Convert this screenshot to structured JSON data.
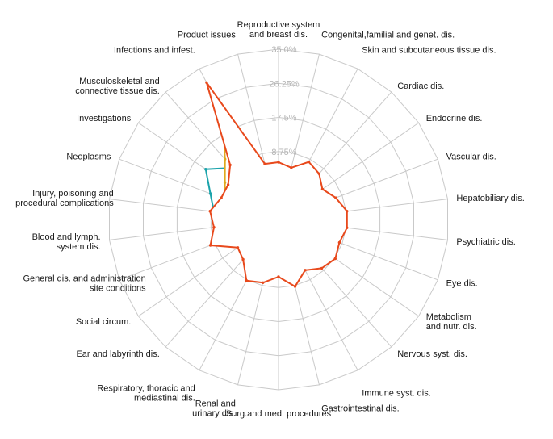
{
  "chart_data": {
    "type": "radar",
    "title": "",
    "axis_max": 35,
    "rings": [
      8.75,
      17.5,
      26.25,
      35.0
    ],
    "ring_labels": [
      "8.75%",
      "17.5%",
      "26.25%",
      "35.0%"
    ],
    "grid_color": "#c9c9c9",
    "label_color": "#1a1a1a",
    "ring_label_color": "#b5b5b5",
    "categories": [
      "Reproductive system\nand breast dis.",
      "Congenital,familial and genet. dis.",
      "Skin and subcutaneous tissue dis.",
      "Cardiac dis.",
      "Endocrine dis.",
      "Vascular dis.",
      "Hepatobiliary dis.",
      "Psychiatric dis.",
      "Eye dis.",
      "Metabolism\nand nutr. dis.",
      "Nervous syst. dis.",
      "Immune syst. dis.",
      "Gastrointestinal dis.",
      "Surg.and med. procedures",
      "Renal and\nurinary dis.",
      "Respiratory, thoracic and\nmediastinal dis.",
      "Ear and labyrinth dis.",
      "Social circum.",
      "General dis. and administration\nsite conditions",
      "Blood and lymph.\nsystem dis.",
      "Injury, poisoning and\nprocedural complications",
      "Neoplasms",
      "Investigations",
      "Musculoskeletal and\nconnective tissue dis.",
      "Infections and infest.",
      "Product issues"
    ],
    "series": [
      {
        "name": "teal",
        "color": "#1ba3ab",
        "values": [
          3,
          3,
          5,
          4,
          3,
          5,
          6,
          6,
          5,
          6,
          5,
          4,
          6,
          4,
          5,
          6,
          4,
          3,
          7,
          6,
          8,
          10,
          14,
          9,
          16,
          4
        ]
      },
      {
        "name": "yellow",
        "color": "#dfa91e",
        "values": [
          4,
          3,
          6,
          5,
          4,
          5,
          7,
          8,
          6,
          7,
          6,
          5,
          7,
          5,
          6,
          7,
          4,
          3,
          8,
          6,
          7,
          6,
          8,
          12,
          22,
          5
        ]
      },
      {
        "name": "red",
        "color": "#e8491c",
        "values": [
          6,
          5,
          8,
          7,
          5,
          7,
          9,
          9,
          8,
          9,
          8,
          6,
          9,
          6,
          8,
          9,
          5,
          4,
          10,
          8,
          9,
          7,
          7,
          10,
          31,
          6
        ]
      }
    ]
  }
}
